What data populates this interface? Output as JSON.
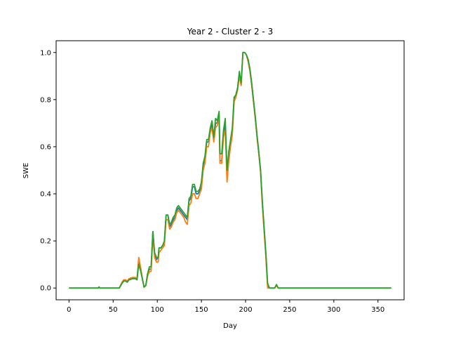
{
  "chart_data": {
    "type": "line",
    "title": "Year 2 - Cluster 2 - 3",
    "xlabel": "Day",
    "ylabel": "SWE",
    "xlim": [
      -14.6,
      379.6
    ],
    "ylim": [
      -0.05,
      1.05
    ],
    "xticks": [
      "0",
      "50",
      "100",
      "150",
      "200",
      "250",
      "300",
      "350"
    ],
    "yticks": [
      "0.0",
      "0.2",
      "0.4",
      "0.6",
      "0.8",
      "1.0"
    ],
    "grid": false,
    "colors": {
      "series_1": "#1f77b4",
      "series_2": "#ff7f0e",
      "series_3": "#2ca02c"
    },
    "series": [
      {
        "x": [
          0,
          33,
          34,
          35,
          57,
          60,
          62,
          64,
          66,
          68,
          72,
          75,
          77,
          79,
          81,
          83,
          85,
          87,
          89,
          91,
          93,
          95,
          97,
          99,
          101,
          102,
          104,
          106,
          108,
          110,
          112,
          114,
          116,
          118,
          120,
          122,
          124,
          126,
          128,
          130,
          132,
          134,
          136,
          138,
          140,
          142,
          144,
          146,
          148,
          150,
          152,
          154,
          156,
          158,
          160,
          162,
          164,
          166,
          168,
          170,
          171,
          173,
          175,
          177,
          179,
          181,
          183,
          185,
          187,
          189,
          191,
          193,
          195,
          197,
          199,
          201,
          203,
          205,
          207,
          209,
          211,
          213,
          215,
          217,
          219,
          221,
          223,
          225,
          227,
          229,
          231,
          233,
          235,
          237,
          239,
          241,
          243,
          245,
          247,
          250,
          300,
          365
        ],
        "values": [
          0,
          0,
          0.004,
          0,
          0,
          0.02,
          0.03,
          0.03,
          0.025,
          0.035,
          0.04,
          0.04,
          0.035,
          0.11,
          0.08,
          0.04,
          0.005,
          0.01,
          0.06,
          0.08,
          0.08,
          0.24,
          0.14,
          0.12,
          0.13,
          0.17,
          0.17,
          0.18,
          0.19,
          0.31,
          0.31,
          0.26,
          0.27,
          0.29,
          0.3,
          0.33,
          0.34,
          0.33,
          0.32,
          0.31,
          0.3,
          0.29,
          0.37,
          0.38,
          0.43,
          0.43,
          0.4,
          0.4,
          0.41,
          0.44,
          0.52,
          0.55,
          0.62,
          0.62,
          0.67,
          0.7,
          0.63,
          0.7,
          0.7,
          0.74,
          0.54,
          0.54,
          0.66,
          0.69,
          0.48,
          0.56,
          0.62,
          0.66,
          0.8,
          0.82,
          0.85,
          0.91,
          0.86,
          1.0,
          1.0,
          0.99,
          0.96,
          0.92,
          0.86,
          0.79,
          0.72,
          0.64,
          0.57,
          0.5,
          0.36,
          0.25,
          0.14,
          0.01,
          0.0,
          0.0,
          0.0,
          0.0,
          0.012,
          0.0,
          0.0,
          0.0,
          0.0,
          0.0,
          0.0,
          0.0,
          0.0,
          0.0
        ]
      },
      {
        "x": [
          0,
          33,
          34,
          35,
          57,
          60,
          62,
          64,
          66,
          68,
          72,
          75,
          77,
          79,
          81,
          83,
          85,
          87,
          89,
          91,
          93,
          95,
          97,
          99,
          101,
          102,
          104,
          106,
          108,
          110,
          112,
          114,
          116,
          118,
          120,
          122,
          124,
          126,
          128,
          130,
          132,
          134,
          136,
          138,
          140,
          142,
          144,
          146,
          148,
          150,
          152,
          154,
          156,
          158,
          160,
          162,
          164,
          166,
          168,
          170,
          171,
          173,
          175,
          177,
          179,
          181,
          183,
          185,
          187,
          189,
          191,
          193,
          195,
          197,
          199,
          201,
          203,
          205,
          207,
          209,
          211,
          213,
          215,
          217,
          219,
          221,
          223,
          225,
          227,
          229,
          231,
          233,
          235,
          237,
          239,
          241,
          243,
          245,
          247,
          250,
          300,
          365
        ],
        "values": [
          0,
          0,
          0.004,
          0,
          0,
          0.025,
          0.035,
          0.035,
          0.03,
          0.04,
          0.045,
          0.045,
          0.04,
          0.13,
          0.09,
          0.045,
          0.003,
          0.01,
          0.05,
          0.07,
          0.07,
          0.22,
          0.13,
          0.11,
          0.11,
          0.15,
          0.16,
          0.17,
          0.18,
          0.29,
          0.29,
          0.25,
          0.26,
          0.28,
          0.29,
          0.32,
          0.33,
          0.32,
          0.31,
          0.3,
          0.28,
          0.27,
          0.35,
          0.36,
          0.4,
          0.4,
          0.38,
          0.38,
          0.4,
          0.42,
          0.5,
          0.53,
          0.6,
          0.6,
          0.66,
          0.68,
          0.62,
          0.68,
          0.69,
          0.72,
          0.53,
          0.53,
          0.64,
          0.67,
          0.45,
          0.54,
          0.6,
          0.65,
          0.79,
          0.81,
          0.84,
          0.9,
          0.86,
          1.0,
          1.0,
          0.99,
          0.96,
          0.92,
          0.86,
          0.79,
          0.72,
          0.64,
          0.57,
          0.49,
          0.35,
          0.24,
          0.13,
          0.0,
          0.0,
          0.0,
          0.0,
          0.0,
          0.01,
          0.0,
          0.0,
          0.0,
          0.0,
          0.0,
          0.0,
          0.0,
          0.0,
          0.0
        ]
      },
      {
        "x": [
          0,
          33,
          34,
          35,
          57,
          60,
          62,
          64,
          66,
          68,
          72,
          75,
          77,
          79,
          81,
          83,
          85,
          87,
          89,
          91,
          93,
          95,
          97,
          99,
          101,
          102,
          104,
          106,
          108,
          110,
          112,
          114,
          116,
          118,
          120,
          122,
          124,
          126,
          128,
          130,
          132,
          134,
          136,
          138,
          140,
          142,
          144,
          146,
          148,
          150,
          152,
          154,
          156,
          158,
          160,
          162,
          164,
          166,
          168,
          170,
          171,
          173,
          175,
          177,
          179,
          181,
          183,
          185,
          187,
          189,
          191,
          193,
          195,
          197,
          199,
          201,
          203,
          205,
          207,
          209,
          211,
          213,
          215,
          217,
          219,
          221,
          223,
          225,
          227,
          229,
          231,
          233,
          235,
          237,
          239,
          241,
          243,
          245,
          247,
          250,
          300,
          365
        ],
        "values": [
          0,
          0,
          0.005,
          0,
          0,
          0.02,
          0.03,
          0.03,
          0.025,
          0.035,
          0.04,
          0.04,
          0.035,
          0.1,
          0.075,
          0.04,
          0.004,
          0.012,
          0.06,
          0.09,
          0.09,
          0.24,
          0.15,
          0.13,
          0.13,
          0.17,
          0.17,
          0.18,
          0.2,
          0.31,
          0.31,
          0.27,
          0.28,
          0.3,
          0.31,
          0.34,
          0.35,
          0.34,
          0.33,
          0.32,
          0.31,
          0.3,
          0.38,
          0.39,
          0.44,
          0.44,
          0.41,
          0.41,
          0.42,
          0.45,
          0.53,
          0.56,
          0.63,
          0.63,
          0.68,
          0.71,
          0.64,
          0.72,
          0.71,
          0.75,
          0.57,
          0.57,
          0.67,
          0.72,
          0.5,
          0.58,
          0.63,
          0.68,
          0.81,
          0.82,
          0.85,
          0.92,
          0.87,
          1.0,
          1.0,
          0.99,
          0.97,
          0.93,
          0.87,
          0.8,
          0.73,
          0.65,
          0.58,
          0.5,
          0.37,
          0.26,
          0.15,
          0.02,
          0.0,
          0.0,
          0.0,
          0.0,
          0.015,
          0.0,
          0.0,
          0.0,
          0.0,
          0.0,
          0.0,
          0.0,
          0.0,
          0.0
        ]
      }
    ]
  }
}
